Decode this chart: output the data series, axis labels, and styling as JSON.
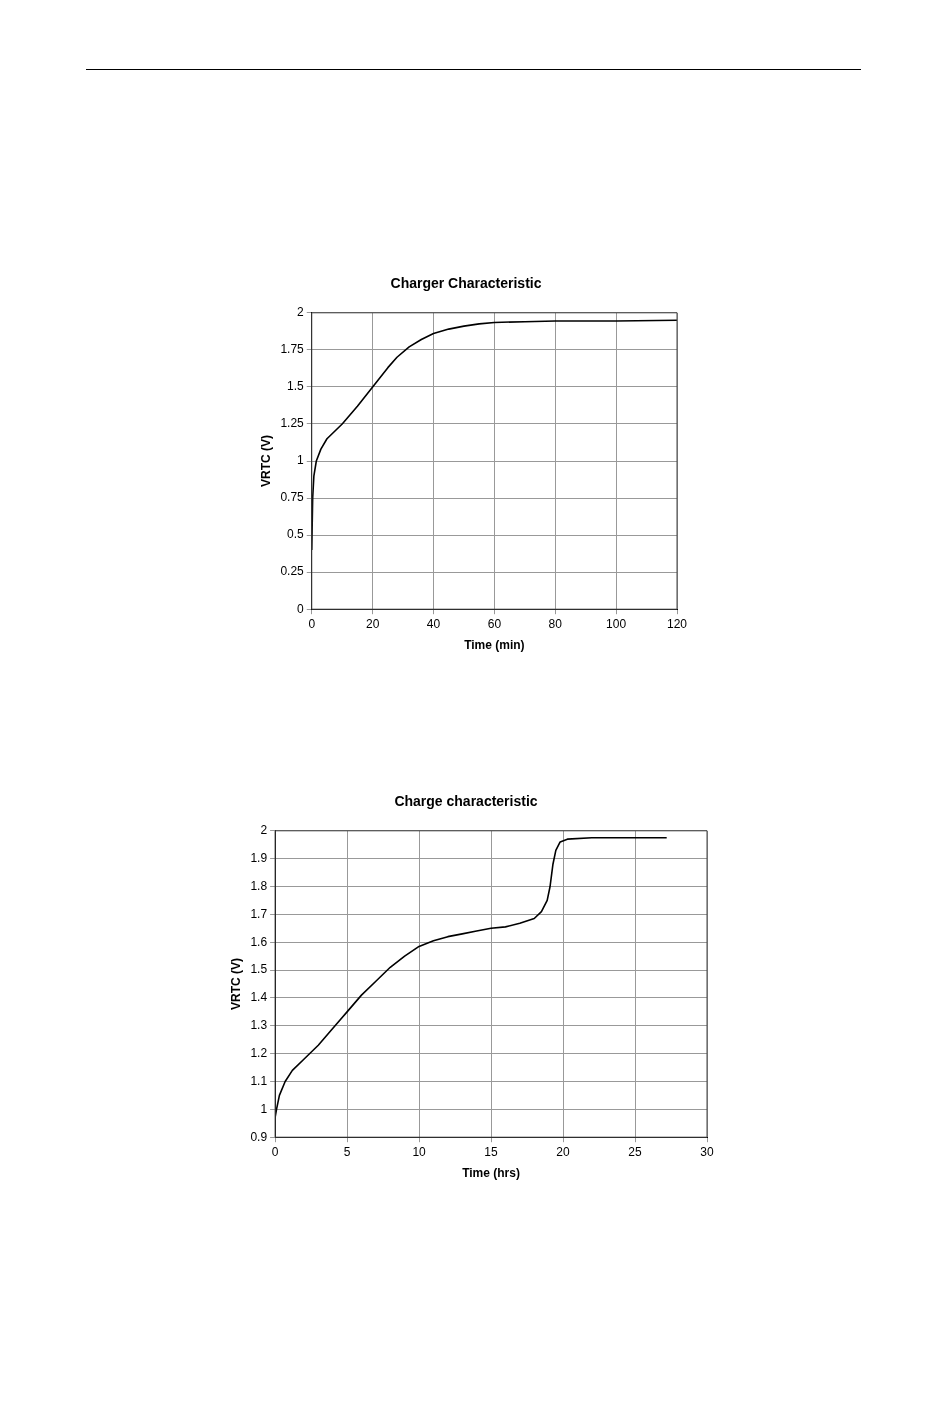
{
  "chart_data": [
    {
      "type": "line",
      "title": "Charger Characteristic",
      "xlabel": "Time (min)",
      "ylabel": "VRTC (V)",
      "xlim": [
        0,
        120
      ],
      "xticks": [
        0,
        20,
        40,
        60,
        80,
        100,
        120
      ],
      "ylim": [
        0,
        2
      ],
      "yticks": [
        0,
        0.25,
        0.5,
        0.75,
        1,
        1.25,
        1.5,
        1.75,
        2
      ],
      "grid": true,
      "legend": false,
      "marker": "none",
      "line_style": "solid",
      "series": [
        {
          "color": "#000000",
          "x": [
            0,
            0.3,
            0.7,
            1.5,
            3,
            5,
            10,
            15,
            20,
            25,
            28,
            32,
            36,
            40,
            45,
            50,
            55,
            60,
            70,
            80,
            100,
            120
          ],
          "values": [
            0.4,
            0.75,
            0.9,
            1.0,
            1.08,
            1.15,
            1.25,
            1.37,
            1.5,
            1.63,
            1.7,
            1.77,
            1.82,
            1.86,
            1.89,
            1.91,
            1.925,
            1.935,
            1.94,
            1.945,
            1.945,
            1.95
          ]
        }
      ]
    },
    {
      "type": "line",
      "title": "Charge characteristic",
      "xlabel": "Time (hrs)",
      "ylabel": "VRTC (V)",
      "xlim": [
        0,
        30
      ],
      "xticks": [
        0,
        5,
        10,
        15,
        20,
        25,
        30
      ],
      "ylim": [
        0.9,
        2
      ],
      "yticks": [
        0.9,
        1,
        1.1,
        1.2,
        1.3,
        1.4,
        1.5,
        1.6,
        1.7,
        1.8,
        1.9,
        2
      ],
      "grid": true,
      "legend": false,
      "marker": "none",
      "line_style": "solid",
      "series": [
        {
          "color": "#000000",
          "x": [
            0,
            0.1,
            0.3,
            0.7,
            1.2,
            2,
            3,
            4,
            5,
            6,
            7,
            8,
            9,
            10,
            11,
            12,
            13,
            14,
            15,
            16,
            17,
            18,
            18.5,
            18.9,
            19.1,
            19.3,
            19.5,
            19.8,
            20.3,
            22,
            25,
            27.2
          ],
          "values": [
            0.97,
            1.0,
            1.05,
            1.1,
            1.14,
            1.18,
            1.23,
            1.29,
            1.35,
            1.41,
            1.46,
            1.51,
            1.55,
            1.585,
            1.605,
            1.62,
            1.63,
            1.64,
            1.65,
            1.655,
            1.668,
            1.685,
            1.71,
            1.75,
            1.8,
            1.88,
            1.93,
            1.96,
            1.97,
            1.975,
            1.975,
            1.975
          ]
        }
      ]
    }
  ]
}
